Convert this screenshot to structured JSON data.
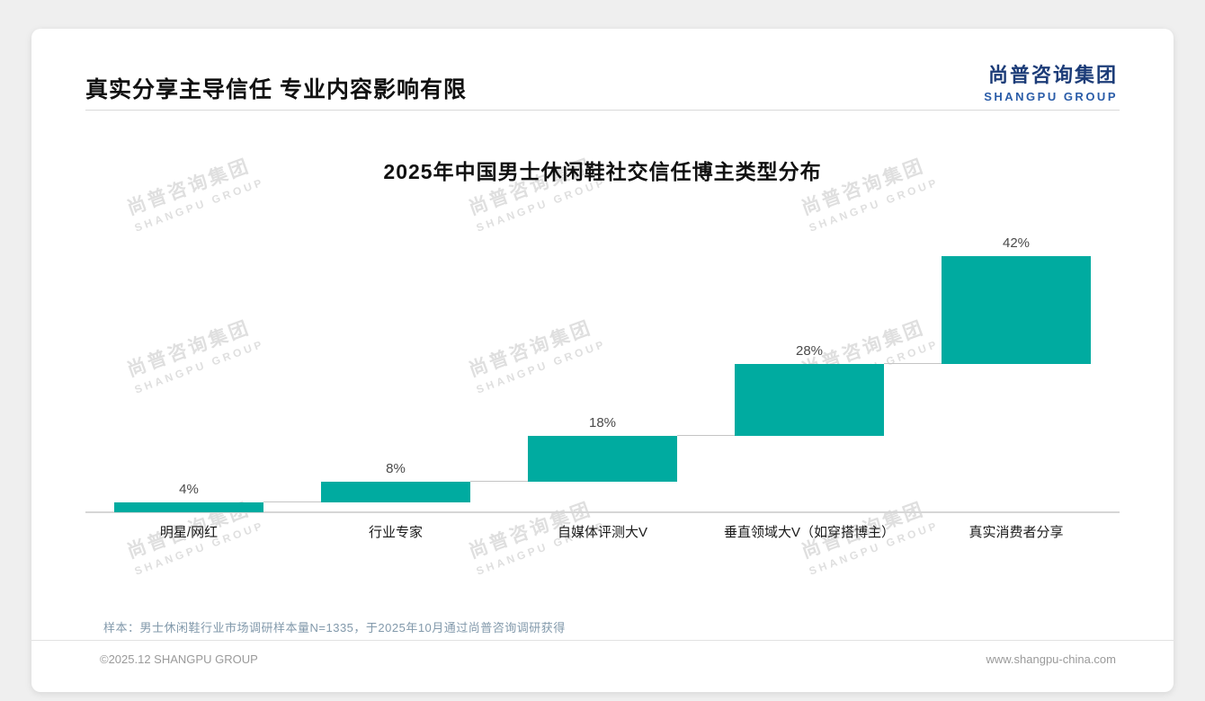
{
  "page": {
    "slide_title": "真实分享主导信任 专业内容影响有限",
    "logo": {
      "cn": "尚普咨询集团",
      "en": "SHANGPU GROUP"
    },
    "watermark": {
      "line1": "尚普咨询集团",
      "line2": "SHANGPU GROUP"
    },
    "footnote": "样本：男士休闲鞋行业市场调研样本量N=1335，于2025年10月通过尚普咨询调研获得",
    "footer_left": "©2025.12 SHANGPU GROUP",
    "footer_right": "www.shangpu-china.com"
  },
  "chart_data": {
    "type": "bar",
    "subtype": "waterfall",
    "title": "2025年中国男士休闲鞋社交信任博主类型分布",
    "categories": [
      "明星/网红",
      "行业专家",
      "自媒体评测大V",
      "垂直领域大V（如穿搭博主）",
      "真实消费者分享"
    ],
    "values": [
      4,
      8,
      18,
      28,
      42
    ],
    "value_labels": [
      "4%",
      "8%",
      "18%",
      "28%",
      "42%"
    ],
    "cumulative": [
      4,
      12,
      30,
      58,
      100
    ],
    "unit": "%",
    "ylim": [
      0,
      100
    ],
    "bar_color": "#00aba0",
    "baseline_visible": true,
    "grid": false,
    "legend": false
  }
}
